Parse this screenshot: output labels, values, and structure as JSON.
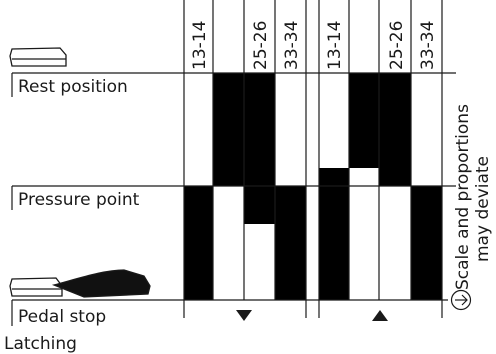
{
  "labels": {
    "rest_position": "Rest position",
    "pressure_point": "Pressure point",
    "pedal_stop": "Pedal stop",
    "latching": "Latching"
  },
  "note": {
    "line1": "Scale and proportions",
    "line2": "may deviate"
  },
  "groups": [
    {
      "direction": "down",
      "columns": [
        {
          "label": "13-14",
          "filled": [
            false,
            false,
            true,
            true
          ]
        },
        {
          "label": "",
          "filled": [
            true,
            true,
            false,
            false
          ]
        },
        {
          "label": "25-26",
          "filled": [
            true,
            true,
            true,
            false
          ]
        },
        {
          "label": "33-34",
          "filled": [
            false,
            false,
            true,
            true
          ]
        }
      ]
    },
    {
      "direction": "up",
      "columns": [
        {
          "label": "13-14",
          "filled": [
            false,
            true,
            true,
            true
          ]
        },
        {
          "label": "",
          "filled": [
            true,
            false,
            false,
            false
          ]
        },
        {
          "label": "25-26",
          "filled": [
            true,
            true,
            false,
            false
          ]
        },
        {
          "label": "33-34",
          "filled": [
            false,
            false,
            true,
            true
          ]
        }
      ]
    }
  ],
  "arrow_icon": "circle-arrow-right-icon",
  "colors": {
    "fill": "#000000",
    "line": "#1a1a1a",
    "background": "#ffffff",
    "pedal": "#ffffff"
  }
}
